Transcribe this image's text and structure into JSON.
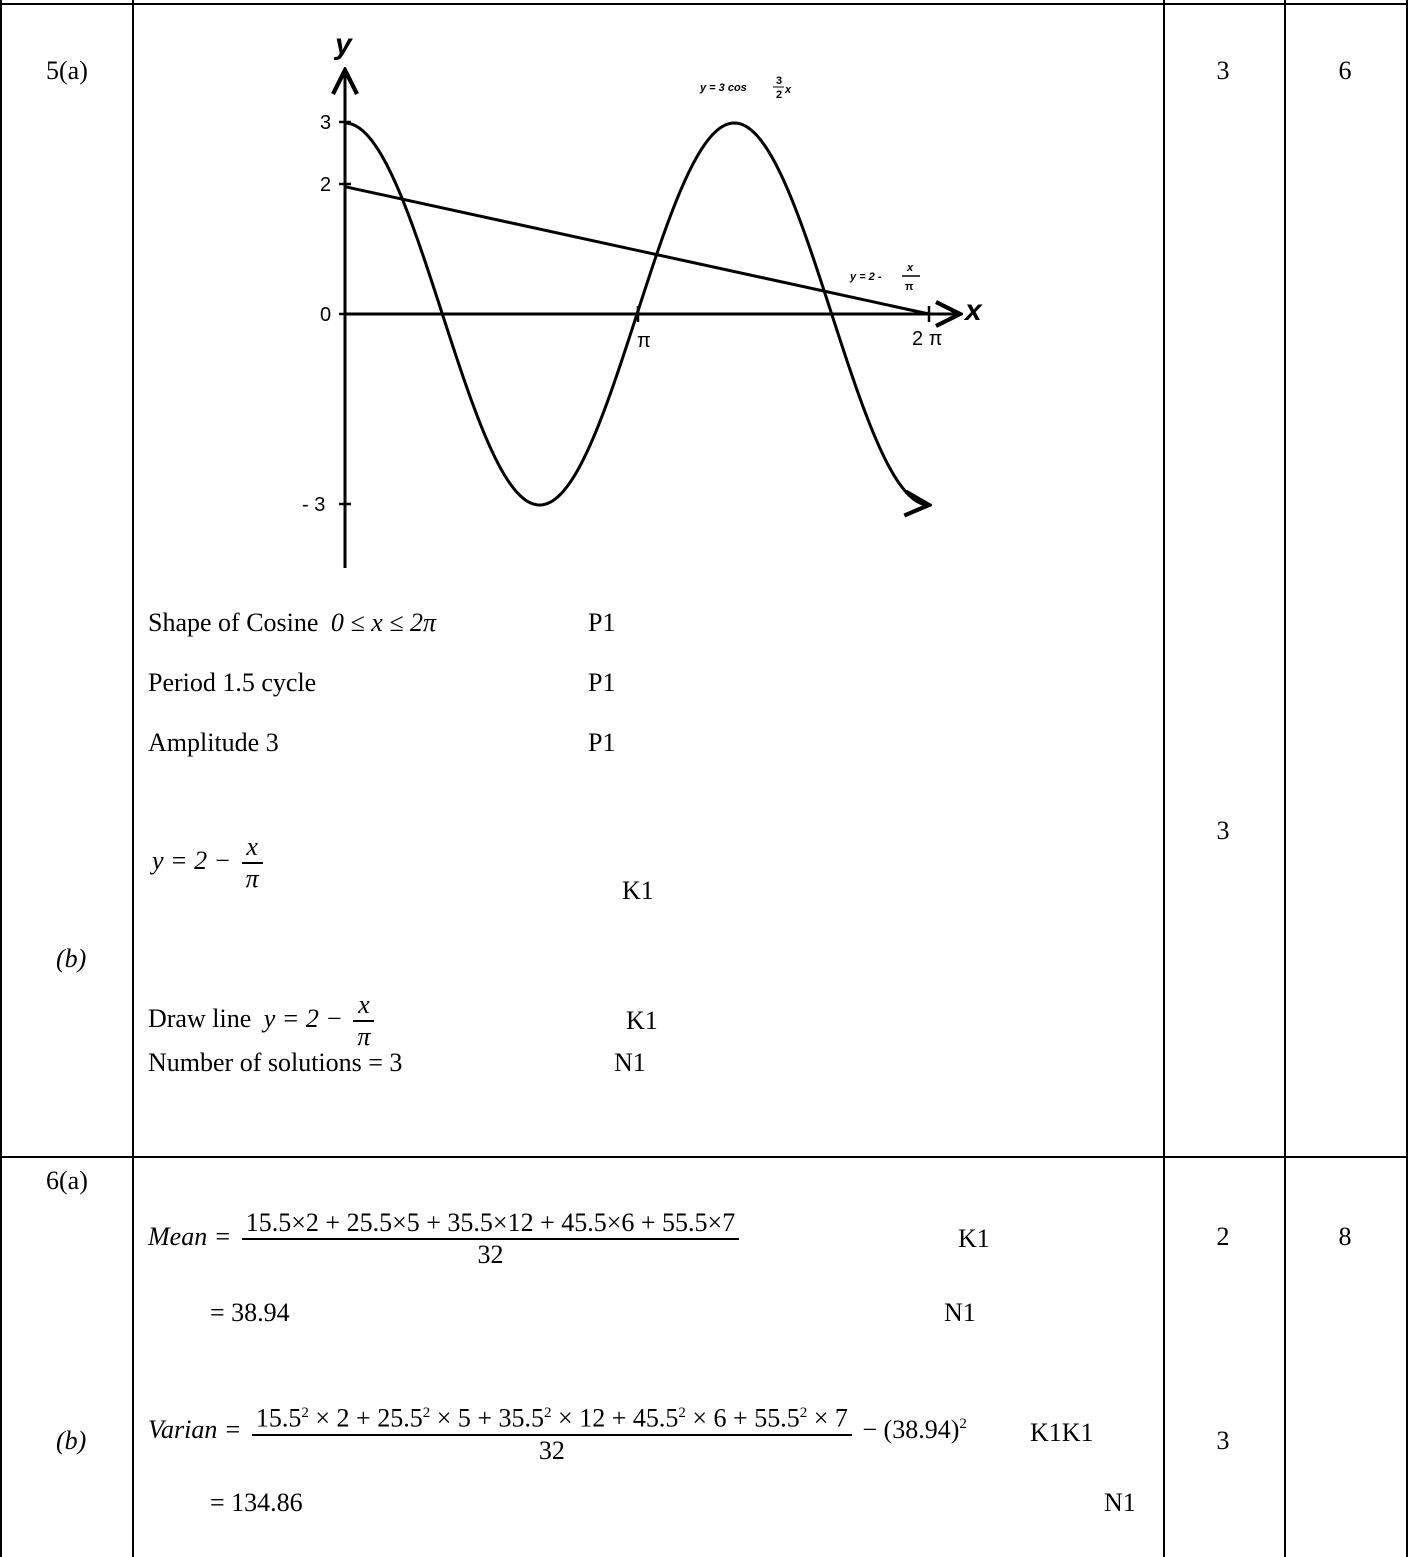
{
  "q5": {
    "label_a": "5(a)",
    "label_b": "(b)",
    "marks_a": "3",
    "marks_total": "6",
    "marks_b": "3",
    "graph": {
      "y_axis_label": "y",
      "x_axis_label": "x",
      "tick_y_3": "3",
      "tick_y_2": "2",
      "tick_y_0": "0",
      "tick_y_neg3": "- 3",
      "tick_x_pi": "π",
      "tick_x_2pi": "2 π",
      "curve_label_prefix": "y = 3 cos",
      "curve_label_num": "3",
      "curve_label_den": "2",
      "curve_label_var": "x",
      "line_label_prefix": "y = 2 -",
      "line_label_num": "x",
      "line_label_den": "π",
      "curve": {
        "equation": "y = 3 cos(3x/2)",
        "amplitude": 3,
        "x_range": [
          0,
          6.2832
        ]
      },
      "line": {
        "equation": "y = 2 - x/π",
        "y_intercept": 2,
        "x_intercept": 6.2832
      }
    },
    "rows_a": [
      {
        "text": "Shape of Cosine",
        "math": "0 ≤ x ≤ 2π",
        "mark": "P1"
      },
      {
        "text": "Period  1.5 cycle",
        "math": "",
        "mark": "P1"
      },
      {
        "text": "Amplitude   3",
        "math": "",
        "mark": "P1"
      }
    ],
    "b_eq_lhs": "y = 2 −",
    "b_eq_num": "x",
    "b_eq_den": "π",
    "b_eq_mark": "K1",
    "b_draw_text": "Draw line",
    "b_draw_lhs": "y = 2 −",
    "b_draw_num": "x",
    "b_draw_den": "π",
    "b_draw_mark": "K1",
    "b_solutions_text": "Number of solutions = 3",
    "b_solutions_mark": "N1"
  },
  "q6": {
    "label_a": "6(a)",
    "label_b": "(b)",
    "marks_a": "2",
    "marks_total": "8",
    "marks_b": "3",
    "mean_lhs": "Mean =",
    "mean_num": "15.5×2 + 25.5×5 + 35.5×12 + 45.5×6 + 55.5×7",
    "mean_den": "32",
    "mean_mark": "K1",
    "mean_result": "= 38.94",
    "mean_result_mark": "N1",
    "var_lhs": "Varian =",
    "var_num_parts": [
      "15.5",
      "2",
      " × 2 + 25.5",
      "2",
      " × 5 + 35.5",
      "2",
      " × 12 + 45.5",
      "2",
      " × 6 + 55.5",
      "2",
      " × 7"
    ],
    "var_den": "32",
    "var_tail": "− (38.94)",
    "var_tail_sup": "2",
    "var_mark": "K1K1",
    "var_result": "= 134.86",
    "var_result_mark": "N1"
  }
}
